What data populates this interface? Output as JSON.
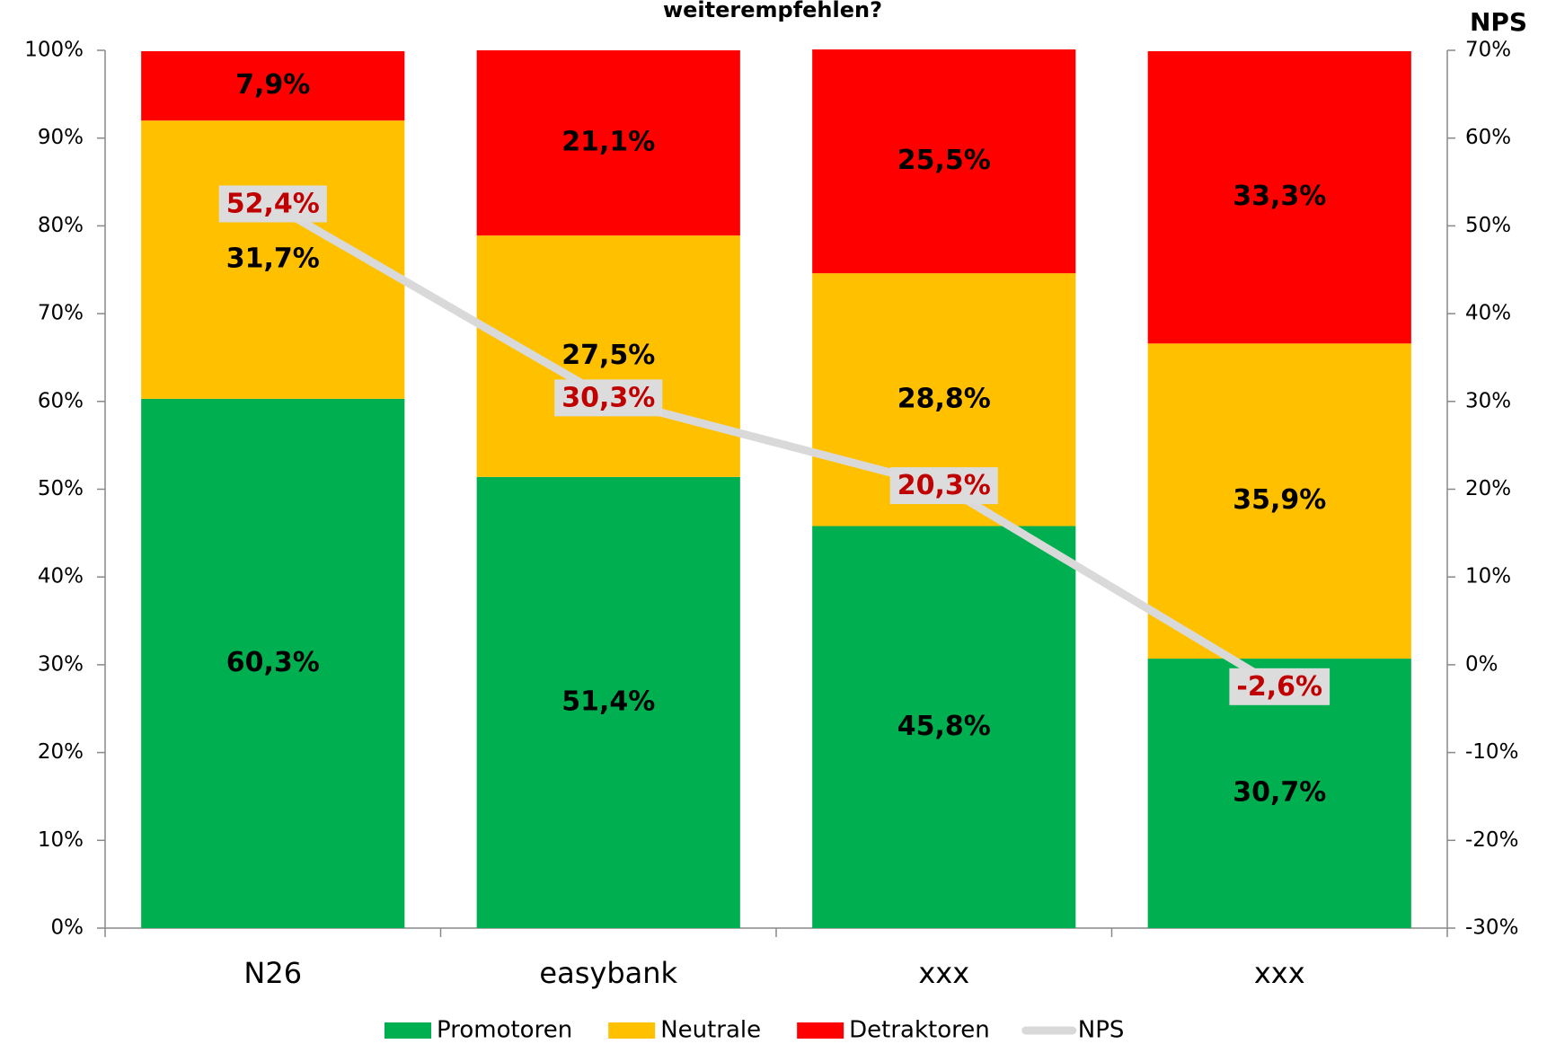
{
  "chart_data": {
    "type": "stacked-bar-line",
    "title": "weiterempfehlen?",
    "y2_title": "NPS",
    "categories": [
      "N26",
      "easybank",
      "xxx",
      "xxx"
    ],
    "series": [
      {
        "name": "Promotoren",
        "color": "#00b050",
        "values": [
          60.3,
          51.4,
          45.8,
          30.7
        ],
        "value_labels": [
          "60,3%",
          "51,4%",
          "45,8%",
          "30,7%"
        ]
      },
      {
        "name": "Neutrale",
        "color": "#ffc000",
        "values": [
          31.7,
          27.5,
          28.8,
          35.9
        ],
        "value_labels": [
          "31,7%",
          "27,5%",
          "28,8%",
          "35,9%"
        ]
      },
      {
        "name": "Detraktoren",
        "color": "#ff0000",
        "values": [
          7.9,
          21.1,
          25.5,
          33.3
        ],
        "value_labels": [
          "7,9%",
          "21,1%",
          "25,5%",
          "33,3%"
        ]
      },
      {
        "name": "NPS",
        "color": "#d9d9d9",
        "axis": "y2",
        "values": [
          52.4,
          30.3,
          20.3,
          -2.6
        ],
        "value_labels": [
          "52,4%",
          "30,3%",
          "20,3%",
          "-2,6%"
        ]
      }
    ],
    "ylim": [
      0,
      100
    ],
    "yticks": [
      {
        "value": 0,
        "label": "0%"
      },
      {
        "value": 10,
        "label": "10%"
      },
      {
        "value": 20,
        "label": "20%"
      },
      {
        "value": 30,
        "label": "30%"
      },
      {
        "value": 40,
        "label": "40%"
      },
      {
        "value": 50,
        "label": "50%"
      },
      {
        "value": 60,
        "label": "60%"
      },
      {
        "value": 70,
        "label": "70%"
      },
      {
        "value": 80,
        "label": "80%"
      },
      {
        "value": 90,
        "label": "90%"
      },
      {
        "value": 100,
        "label": "100%"
      }
    ],
    "y2lim": [
      -30,
      70
    ],
    "y2ticks": [
      {
        "value": -30,
        "label": "-30%"
      },
      {
        "value": -20,
        "label": "-20%"
      },
      {
        "value": -10,
        "label": "-10%"
      },
      {
        "value": 0,
        "label": "0%"
      },
      {
        "value": 10,
        "label": "10%"
      },
      {
        "value": 20,
        "label": "20%"
      },
      {
        "value": 30,
        "label": "30%"
      },
      {
        "value": 40,
        "label": "40%"
      },
      {
        "value": 50,
        "label": "50%"
      },
      {
        "value": 60,
        "label": "60%"
      },
      {
        "value": 70,
        "label": "70%"
      }
    ],
    "legend": "bottom"
  }
}
